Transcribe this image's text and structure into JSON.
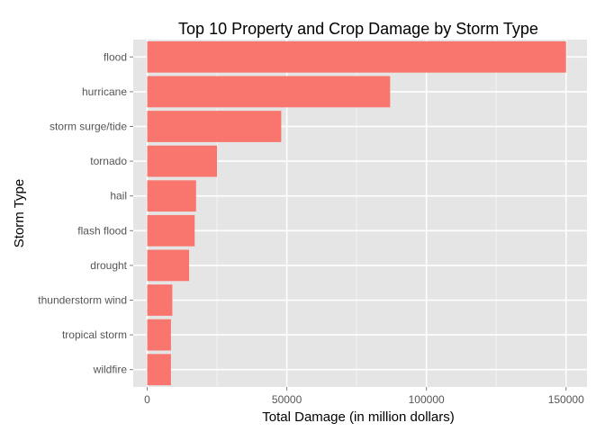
{
  "chart_data": {
    "type": "bar",
    "orientation": "horizontal",
    "title": "Top 10 Property and Crop Damage by Storm Type",
    "xlabel": "Total Damage (in million dollars)",
    "ylabel": "Storm Type",
    "categories": [
      "flood",
      "hurricane",
      "storm surge/tide",
      "tornado",
      "hail",
      "flash flood",
      "drought",
      "thunderstorm wind",
      "tropical storm",
      "wildfire"
    ],
    "values": [
      150000,
      87000,
      48000,
      25000,
      17500,
      17000,
      15000,
      9000,
      8500,
      8500
    ],
    "xlim": [
      -5000,
      157500
    ],
    "xticks": [
      0,
      50000,
      100000,
      150000
    ],
    "xtick_labels": [
      "0",
      "50000",
      "100000",
      "150000"
    ],
    "grid": true,
    "colors": {
      "bar": "#F8766D",
      "panel": "#E5E5E5",
      "grid_major": "#FFFFFF",
      "grid_minor": "#F2F2F2"
    }
  }
}
